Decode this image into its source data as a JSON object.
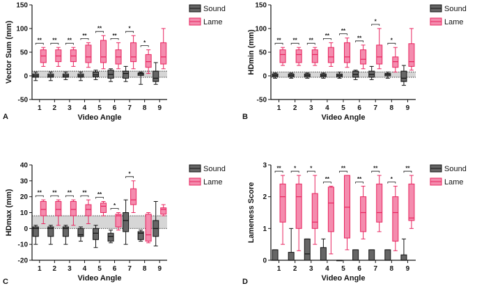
{
  "colors": {
    "sound_fill": "#666666",
    "sound_stroke": "#111111",
    "lame_fill": "#f48cae",
    "lame_stroke": "#e8245f",
    "ref_band": "#d6d6d6"
  },
  "chart_data": [
    {
      "panel_label": "A",
      "type": "boxplot",
      "xlabel": "Video Angle",
      "ylabel": "Vector Sum (mm)",
      "ylim": [
        -50,
        150
      ],
      "yticks": [
        -50,
        0,
        50,
        100,
        150
      ],
      "categories": [
        "1",
        "2",
        "3",
        "4",
        "5",
        "6",
        "7",
        "8",
        "9"
      ],
      "legend": [
        "Sound",
        "Lame"
      ],
      "reference_band": [
        -3,
        10
      ],
      "series": [
        {
          "name": "Sound",
          "boxes": [
            {
              "min": -10,
              "q1": -3,
              "median": 0,
              "q3": 4,
              "max": 8
            },
            {
              "min": -10,
              "q1": -3,
              "median": 0,
              "q3": 4,
              "max": 8
            },
            {
              "min": -8,
              "q1": -3,
              "median": 0,
              "q3": 4,
              "max": 8
            },
            {
              "min": -10,
              "q1": -3,
              "median": 0,
              "q3": 4,
              "max": 8
            },
            {
              "min": -8,
              "q1": -2,
              "median": 2,
              "q3": 8,
              "max": 12
            },
            {
              "min": -12,
              "q1": -5,
              "median": 3,
              "q3": 12,
              "max": 15
            },
            {
              "min": -12,
              "q1": -5,
              "median": 5,
              "q3": 10,
              "max": 20
            },
            {
              "min": -18,
              "q1": 1,
              "median": 4,
              "q3": 6,
              "max": 8
            },
            {
              "min": -18,
              "q1": -12,
              "median": -5,
              "q3": 10,
              "max": 28
            }
          ]
        },
        {
          "name": "Lame",
          "boxes": [
            {
              "min": 20,
              "q1": 28,
              "median": 42,
              "q3": 55,
              "max": 60
            },
            {
              "min": 20,
              "q1": 30,
              "median": 42,
              "q3": 55,
              "max": 60
            },
            {
              "min": 20,
              "q1": 30,
              "median": 42,
              "q3": 55,
              "max": 60
            },
            {
              "min": 18,
              "q1": 28,
              "median": 40,
              "q3": 65,
              "max": 70
            },
            {
              "min": 15,
              "q1": 28,
              "median": 40,
              "q3": 75,
              "max": 85
            },
            {
              "min": 15,
              "q1": 25,
              "median": 40,
              "q3": 55,
              "max": 70
            },
            {
              "min": 15,
              "q1": 30,
              "median": 40,
              "q3": 70,
              "max": 85
            },
            {
              "min": 5,
              "q1": 18,
              "median": 30,
              "q3": 45,
              "max": 55
            },
            {
              "min": 15,
              "q1": 25,
              "median": 40,
              "q3": 70,
              "max": 100
            }
          ]
        }
      ],
      "significance": [
        "**",
        "**",
        "**",
        "**",
        "**",
        "**",
        "*",
        "*",
        ""
      ]
    },
    {
      "panel_label": "B",
      "type": "boxplot",
      "xlabel": "Video Angle",
      "ylabel": "HDmin (mm)",
      "ylim": [
        -50,
        150
      ],
      "yticks": [
        -50,
        0,
        50,
        100,
        150
      ],
      "categories": [
        "1",
        "2",
        "3",
        "4",
        "5",
        "6",
        "7",
        "8",
        "9"
      ],
      "legend": [
        "Sound",
        "Lame"
      ],
      "reference_band": [
        -3,
        8
      ],
      "series": [
        {
          "name": "Sound",
          "boxes": [
            {
              "min": -5,
              "q1": -2,
              "median": 1,
              "q3": 4,
              "max": 6
            },
            {
              "min": -5,
              "q1": -2,
              "median": 1,
              "q3": 4,
              "max": 6
            },
            {
              "min": -5,
              "q1": -2,
              "median": 1,
              "q3": 4,
              "max": 6
            },
            {
              "min": -5,
              "q1": -2,
              "median": 1,
              "q3": 4,
              "max": 6
            },
            {
              "min": -5,
              "q1": -2,
              "median": 1,
              "q3": 4,
              "max": 8
            },
            {
              "min": -8,
              "q1": -3,
              "median": 3,
              "q3": 10,
              "max": 12
            },
            {
              "min": -8,
              "q1": -3,
              "median": 3,
              "q3": 10,
              "max": 20
            },
            {
              "min": -5,
              "q1": 0,
              "median": 3,
              "q3": 5,
              "max": 8
            },
            {
              "min": -20,
              "q1": -12,
              "median": -5,
              "q3": 10,
              "max": 22
            }
          ]
        },
        {
          "name": "Lame",
          "boxes": [
            {
              "min": 22,
              "q1": 28,
              "median": 45,
              "q3": 55,
              "max": 60
            },
            {
              "min": 22,
              "q1": 28,
              "median": 45,
              "q3": 55,
              "max": 60
            },
            {
              "min": 22,
              "q1": 28,
              "median": 45,
              "q3": 55,
              "max": 60
            },
            {
              "min": 20,
              "q1": 28,
              "median": 40,
              "q3": 60,
              "max": 70
            },
            {
              "min": 18,
              "q1": 28,
              "median": 40,
              "q3": 70,
              "max": 80
            },
            {
              "min": 15,
              "q1": 25,
              "median": 35,
              "q3": 55,
              "max": 65
            },
            {
              "min": 15,
              "q1": 25,
              "median": 40,
              "q3": 65,
              "max": 100
            },
            {
              "min": 8,
              "q1": 18,
              "median": 30,
              "q3": 40,
              "max": 60
            },
            {
              "min": 12,
              "q1": 20,
              "median": 30,
              "q3": 68,
              "max": 100
            }
          ]
        }
      ],
      "significance": [
        "**",
        "**",
        "**",
        "**",
        "**",
        "**",
        "*",
        "*",
        ""
      ]
    },
    {
      "panel_label": "C",
      "type": "boxplot",
      "xlabel": "Video Angle",
      "ylabel": "HDmax (mm)",
      "ylim": [
        -20,
        40
      ],
      "yticks": [
        -20,
        -10,
        0,
        10,
        20,
        30,
        40
      ],
      "categories": [
        "1",
        "2",
        "3",
        "4",
        "5",
        "6",
        "7",
        "8",
        "9"
      ],
      "legend": [
        "Sound",
        "Lame"
      ],
      "reference_band": [
        0,
        8
      ],
      "series": [
        {
          "name": "Sound",
          "boxes": [
            {
              "min": -10,
              "q1": -5,
              "median": 0,
              "q3": 1,
              "max": 2
            },
            {
              "min": -10,
              "q1": -5,
              "median": 0,
              "q3": 1,
              "max": 2
            },
            {
              "min": -10,
              "q1": -5,
              "median": 0,
              "q3": 1,
              "max": 2
            },
            {
              "min": -8,
              "q1": -5,
              "median": -4,
              "q3": 0,
              "max": 1
            },
            {
              "min": -12,
              "q1": -7,
              "median": -3,
              "q3": 0,
              "max": 2
            },
            {
              "min": -9,
              "q1": -8,
              "median": -5,
              "q3": -3,
              "max": -1
            },
            {
              "min": -10,
              "q1": -2,
              "median": 5,
              "q3": 10,
              "max": 18
            },
            {
              "min": -8,
              "q1": -7,
              "median": -3,
              "q3": -2,
              "max": -1
            },
            {
              "min": -11,
              "q1": -5,
              "median": 0,
              "q3": 5,
              "max": 17
            }
          ]
        },
        {
          "name": "Lame",
          "boxes": [
            {
              "min": 3,
              "q1": 8,
              "median": 12,
              "q3": 17,
              "max": 18
            },
            {
              "min": 2,
              "q1": 8,
              "median": 12,
              "q3": 17,
              "max": 18
            },
            {
              "min": 2,
              "q1": 8,
              "median": 12,
              "q3": 17,
              "max": 18
            },
            {
              "min": 3,
              "q1": 8,
              "median": 12,
              "q3": 15,
              "max": 18
            },
            {
              "min": 8,
              "q1": 10,
              "median": 14,
              "q3": 16,
              "max": 17
            },
            {
              "min": -1,
              "q1": 1,
              "median": 8,
              "q3": 9,
              "max": 10
            },
            {
              "min": 10,
              "q1": 15,
              "median": 18,
              "q3": 25,
              "max": 30
            },
            {
              "min": -9,
              "q1": -8,
              "median": -4,
              "q3": 9,
              "max": 10
            },
            {
              "min": 8,
              "q1": 9,
              "median": 12,
              "q3": 13,
              "max": 15
            }
          ]
        }
      ],
      "significance": [
        "**",
        "**",
        "**",
        "**",
        "**",
        "*",
        "*",
        "",
        ""
      ]
    },
    {
      "panel_label": "D",
      "type": "boxplot",
      "xlabel": "Video Angle",
      "ylabel": "Lameness Score",
      "ylim": [
        0,
        3
      ],
      "yticks": [
        0,
        1,
        2,
        3
      ],
      "categories": [
        "1",
        "2",
        "3",
        "4",
        "5",
        "6",
        "7",
        "8",
        "9"
      ],
      "legend": [
        "Sound",
        "Lame"
      ],
      "reference_band": null,
      "series": [
        {
          "name": "Sound",
          "boxes": [
            {
              "min": 0,
              "q1": 0,
              "median": 0,
              "q3": 0.33,
              "max": 0.33
            },
            {
              "min": 0,
              "q1": 0,
              "median": 0,
              "q3": 0.25,
              "max": 1.0
            },
            {
              "min": 0,
              "q1": 0,
              "median": 0.2,
              "q3": 0.67,
              "max": 0.67
            },
            {
              "min": 0,
              "q1": 0,
              "median": 0,
              "q3": 0.4,
              "max": 0.67
            },
            {
              "min": 0,
              "q1": 0,
              "median": 0,
              "q3": 0,
              "max": 0
            },
            {
              "min": 0,
              "q1": 0,
              "median": 0,
              "q3": 0.33,
              "max": 0.33
            },
            {
              "min": 0,
              "q1": 0,
              "median": 0,
              "q3": 0.33,
              "max": 0.33
            },
            {
              "min": 0,
              "q1": 0,
              "median": 0,
              "q3": 0.33,
              "max": 0.33
            },
            {
              "min": 0,
              "q1": 0,
              "median": 0,
              "q3": 0.17,
              "max": 0.67
            }
          ]
        },
        {
          "name": "Lame",
          "boxes": [
            {
              "min": 0.5,
              "q1": 1.2,
              "median": 2.0,
              "q3": 2.4,
              "max": 2.67
            },
            {
              "min": 0.3,
              "q1": 1.0,
              "median": 2.0,
              "q3": 2.4,
              "max": 2.67
            },
            {
              "min": 0.5,
              "q1": 1.0,
              "median": 1.2,
              "q3": 2.1,
              "max": 2.67
            },
            {
              "min": 0.2,
              "q1": 0.9,
              "median": 1.8,
              "q3": 2.3,
              "max": 2.33
            },
            {
              "min": 0.33,
              "q1": 0.7,
              "median": 1.67,
              "q3": 2.67,
              "max": 2.67
            },
            {
              "min": 0.67,
              "q1": 0.9,
              "median": 1.5,
              "q3": 2.0,
              "max": 2.33
            },
            {
              "min": 0.9,
              "q1": 1.2,
              "median": 1.5,
              "q3": 2.4,
              "max": 2.67
            },
            {
              "min": 0.3,
              "q1": 0.6,
              "median": 1.5,
              "q3": 2.0,
              "max": 2.33
            },
            {
              "min": 1.0,
              "q1": 1.25,
              "median": 1.33,
              "q3": 2.4,
              "max": 2.67
            }
          ]
        }
      ],
      "significance": [
        "**",
        "*",
        "*",
        "**",
        "**",
        "**",
        "**",
        "*",
        "**"
      ]
    }
  ]
}
